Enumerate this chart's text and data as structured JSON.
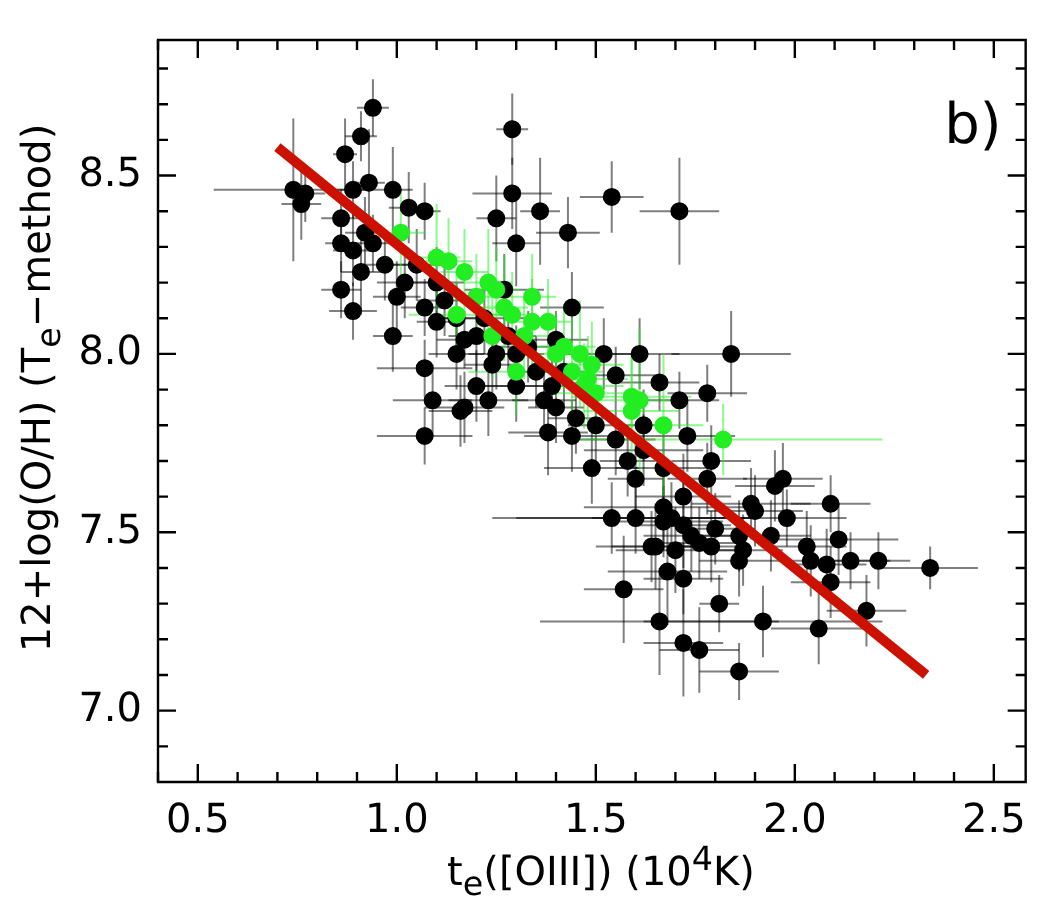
{
  "chart_data": {
    "type": "scatter",
    "xlabel": "t$_{e}$([OIII]) (10$^{4}$K)",
    "ylabel": "12+log(O/H) (T$_{e}$−method)",
    "annotations": [
      "b)"
    ],
    "xlim": [
      0.4,
      2.58
    ],
    "ylim": [
      6.8,
      8.88
    ],
    "xticks": [
      {
        "value": 0.4,
        "label": null
      },
      0.5,
      {
        "value": 0.6,
        "label": null
      },
      {
        "value": 0.7,
        "label": null
      },
      {
        "value": 0.8,
        "label": null
      },
      {
        "value": 0.9,
        "label": null
      },
      {
        "value": 1.0,
        "label": "1.0"
      },
      {
        "value": 1.1,
        "label": null
      },
      {
        "value": 1.2,
        "label": null
      },
      {
        "value": 1.3,
        "label": null
      },
      {
        "value": 1.4,
        "label": null
      },
      1.5,
      {
        "value": 1.6,
        "label": null
      },
      {
        "value": 1.7,
        "label": null
      },
      {
        "value": 1.8,
        "label": null
      },
      {
        "value": 1.9,
        "label": null
      },
      {
        "value": 2.0,
        "label": "2.0"
      },
      {
        "value": 2.1,
        "label": null
      },
      {
        "value": 2.2,
        "label": null
      },
      {
        "value": 2.3,
        "label": null
      },
      {
        "value": 2.4,
        "label": null
      },
      2.5
    ],
    "yticks": [
      {
        "value": 6.9,
        "label": null
      },
      {
        "value": 7.0,
        "label": "7.0"
      },
      {
        "value": 7.1,
        "label": null
      },
      {
        "value": 7.2,
        "label": null
      },
      {
        "value": 7.3,
        "label": null
      },
      {
        "value": 7.4,
        "label": null
      },
      7.5,
      {
        "value": 7.6,
        "label": null
      },
      {
        "value": 7.7,
        "label": null
      },
      {
        "value": 7.8,
        "label": null
      },
      {
        "value": 7.9,
        "label": null
      },
      {
        "value": 8.0,
        "label": "8.0"
      },
      {
        "value": 8.1,
        "label": null
      },
      {
        "value": 8.2,
        "label": null
      },
      {
        "value": 8.3,
        "label": null
      },
      {
        "value": 8.4,
        "label": null
      },
      8.5,
      {
        "value": 8.6,
        "label": null
      },
      {
        "value": 8.7,
        "label": null
      },
      {
        "value": 8.8,
        "label": null
      }
    ],
    "grid": false,
    "legend": false,
    "series": [
      {
        "color": "#000000",
        "marker": "circle",
        "x": [
          0.94,
          0.91,
          0.87,
          1.29,
          1.29,
          1.36,
          1.43,
          1.25,
          0.93,
          0.89,
          0.74,
          0.77,
          0.76,
          0.99,
          1.03,
          1.07,
          0.86,
          0.92,
          0.86,
          0.89,
          0.94,
          0.97,
          0.91,
          0.86,
          0.89,
          0.99,
          1.0,
          1.07,
          1.1,
          1.3,
          1.27,
          1.4,
          1.44,
          1.52,
          1.07,
          1.09,
          1.17,
          1.2,
          1.3,
          1.37,
          1.39,
          1.3,
          1.24,
          1.17,
          1.54,
          1.71,
          1.61,
          1.84,
          1.55,
          1.66,
          1.71,
          1.78,
          1.16,
          1.07,
          1.23,
          1.38,
          1.44,
          1.49,
          1.54,
          1.55,
          1.62,
          1.67,
          1.73,
          1.79,
          1.78,
          1.72,
          1.67,
          1.69,
          1.6,
          1.67,
          1.72,
          1.65,
          1.7,
          1.64,
          1.74,
          1.76,
          1.79,
          1.86,
          1.89,
          1.9,
          1.95,
          1.97,
          1.98,
          1.94,
          1.86,
          2.09,
          2.11,
          2.03,
          2.04,
          2.08,
          2.14,
          2.21,
          2.34,
          2.09,
          1.57,
          1.68,
          1.72,
          1.81,
          1.66,
          1.92,
          2.06,
          2.18,
          1.72,
          1.76,
          1.86,
          1.87,
          1.8,
          1.1,
          1.12,
          1.15,
          1.2,
          1.25,
          1.35,
          1.4,
          1.45,
          1.5,
          1.6,
          1.58,
          1.15,
          1.05,
          1.02,
          1.22,
          1.28,
          1.33,
          1.42,
          1.62
        ],
        "values": [
          8.69,
          8.61,
          8.56,
          8.63,
          8.45,
          8.4,
          8.34,
          8.38,
          8.48,
          8.46,
          8.46,
          8.45,
          8.42,
          8.46,
          8.41,
          8.4,
          8.38,
          8.34,
          8.31,
          8.29,
          8.31,
          8.25,
          8.23,
          8.18,
          8.12,
          8.05,
          8.16,
          8.13,
          8.09,
          8.31,
          8.18,
          8.04,
          8.13,
          8.0,
          7.96,
          7.87,
          7.85,
          7.91,
          7.91,
          7.87,
          7.91,
          8.0,
          7.97,
          8.04,
          8.44,
          8.4,
          8.0,
          8.0,
          7.94,
          7.92,
          7.87,
          7.89,
          7.84,
          7.77,
          7.87,
          7.78,
          7.77,
          7.68,
          7.54,
          7.76,
          7.73,
          7.68,
          7.77,
          7.7,
          7.65,
          7.6,
          7.57,
          7.54,
          7.54,
          7.53,
          7.52,
          7.46,
          7.45,
          7.46,
          7.49,
          7.47,
          7.46,
          7.49,
          7.58,
          7.56,
          7.63,
          7.65,
          7.54,
          7.49,
          7.42,
          7.58,
          7.48,
          7.46,
          7.42,
          7.41,
          7.42,
          7.42,
          7.4,
          7.36,
          7.34,
          7.39,
          7.37,
          7.3,
          7.25,
          7.25,
          7.23,
          7.28,
          7.19,
          7.17,
          7.11,
          7.45,
          7.51,
          8.2,
          8.15,
          8.1,
          8.05,
          8.0,
          7.95,
          7.85,
          7.82,
          7.8,
          7.65,
          7.7,
          8.0,
          8.25,
          8.2,
          8.1,
          8.05,
          8.02,
          7.95,
          7.8
        ],
        "xerrors": [
          0.04,
          0.04,
          0.03,
          0.04,
          0.1,
          0.05,
          0.08,
          0.05,
          0.04,
          0.04,
          0.2,
          0.05,
          0.05,
          0.05,
          0.05,
          0.04,
          0.05,
          0.05,
          0.04,
          0.05,
          0.05,
          0.06,
          0.05,
          0.05,
          0.06,
          0.05,
          0.06,
          0.06,
          0.05,
          0.06,
          0.1,
          0.08,
          0.08,
          0.1,
          0.12,
          0.1,
          0.1,
          0.08,
          0.08,
          0.08,
          0.08,
          0.07,
          0.07,
          0.07,
          0.08,
          0.1,
          0.1,
          0.15,
          0.1,
          0.1,
          0.1,
          0.1,
          0.08,
          0.12,
          0.1,
          0.1,
          0.12,
          0.12,
          0.3,
          0.1,
          0.15,
          0.12,
          0.12,
          0.1,
          0.1,
          0.12,
          0.2,
          0.2,
          0.3,
          0.15,
          0.12,
          0.15,
          0.15,
          0.1,
          0.12,
          0.1,
          0.1,
          0.1,
          0.15,
          0.12,
          0.1,
          0.1,
          0.15,
          0.1,
          0.1,
          0.1,
          0.15,
          0.1,
          0.08,
          0.1,
          0.1,
          0.08,
          0.12,
          0.1,
          0.1,
          0.15,
          0.1,
          0.05,
          0.3,
          0.3,
          0.12,
          0.1,
          0.1,
          0.1,
          0.1,
          0.1,
          0.1,
          0.07,
          0.07,
          0.07,
          0.07,
          0.07,
          0.07,
          0.07,
          0.07,
          0.07,
          0.07,
          0.07,
          0.07,
          0.07,
          0.07,
          0.12,
          0.07,
          0.07,
          0.07,
          0.07
        ],
        "errors": [
          0.08,
          0.07,
          0.1,
          0.1,
          0.1,
          0.15,
          0.1,
          0.12,
          0.15,
          0.08,
          0.2,
          0.08,
          0.1,
          0.12,
          0.1,
          0.08,
          0.08,
          0.1,
          0.08,
          0.1,
          0.08,
          0.1,
          0.12,
          0.08,
          0.08,
          0.1,
          0.1,
          0.08,
          0.1,
          0.12,
          0.1,
          0.08,
          0.1,
          0.1,
          0.08,
          0.1,
          0.1,
          0.1,
          0.1,
          0.1,
          0.08,
          0.08,
          0.08,
          0.08,
          0.1,
          0.15,
          0.1,
          0.12,
          0.08,
          0.08,
          0.08,
          0.08,
          0.1,
          0.08,
          0.1,
          0.12,
          0.1,
          0.1,
          0.1,
          0.1,
          0.1,
          0.1,
          0.1,
          0.1,
          0.1,
          0.12,
          0.12,
          0.1,
          0.1,
          0.1,
          0.12,
          0.12,
          0.12,
          0.1,
          0.1,
          0.1,
          0.1,
          0.1,
          0.1,
          0.1,
          0.1,
          0.1,
          0.08,
          0.1,
          0.1,
          0.08,
          0.1,
          0.1,
          0.1,
          0.1,
          0.08,
          0.08,
          0.06,
          0.1,
          0.15,
          0.15,
          0.1,
          0.08,
          0.15,
          0.1,
          0.1,
          0.1,
          0.15,
          0.12,
          0.08,
          0.1,
          0.1,
          0.1,
          0.1,
          0.1,
          0.1,
          0.1,
          0.1,
          0.1,
          0.1,
          0.1,
          0.1,
          0.1,
          0.1,
          0.1,
          0.1,
          0.1,
          0.1,
          0.1,
          0.1,
          0.1
        ]
      },
      {
        "color": "#22ee22",
        "marker": "circle",
        "x": [
          1.01,
          1.1,
          1.13,
          1.17,
          1.15,
          1.24,
          1.27,
          1.3,
          1.4,
          1.44,
          1.49,
          1.2,
          1.23,
          1.29,
          1.34,
          1.38,
          1.34,
          1.46,
          1.48,
          1.59,
          1.61,
          1.59,
          1.67,
          1.82,
          1.47,
          1.5,
          1.25,
          1.32,
          1.42
        ],
        "values": [
          8.34,
          8.27,
          8.26,
          8.23,
          8.11,
          8.05,
          8.13,
          7.95,
          8.0,
          7.95,
          7.97,
          8.16,
          8.2,
          8.11,
          8.09,
          8.09,
          8.16,
          8.0,
          7.93,
          7.88,
          7.87,
          7.84,
          7.8,
          7.76,
          7.91,
          7.89,
          8.18,
          8.05,
          8.02
        ],
        "xerrors": [
          0.06,
          0.06,
          0.06,
          0.06,
          0.12,
          0.06,
          0.06,
          0.12,
          0.08,
          0.08,
          0.08,
          0.06,
          0.06,
          0.06,
          0.06,
          0.06,
          0.06,
          0.08,
          0.1,
          0.15,
          0.1,
          0.12,
          0.1,
          0.4,
          0.1,
          0.1,
          0.06,
          0.08,
          0.08
        ],
        "errors": [
          0.12,
          0.15,
          0.12,
          0.12,
          0.12,
          0.12,
          0.15,
          0.12,
          0.12,
          0.15,
          0.12,
          0.12,
          0.15,
          0.12,
          0.12,
          0.12,
          0.12,
          0.15,
          0.12,
          0.12,
          0.2,
          0.15,
          0.2,
          0.1,
          0.12,
          0.12,
          0.12,
          0.12,
          0.12
        ]
      },
      {
        "type": "line",
        "marker": "none",
        "color": "#cc1100",
        "x": [
          0.7,
          2.33
        ],
        "values": [
          8.58,
          7.1
        ]
      }
    ]
  }
}
